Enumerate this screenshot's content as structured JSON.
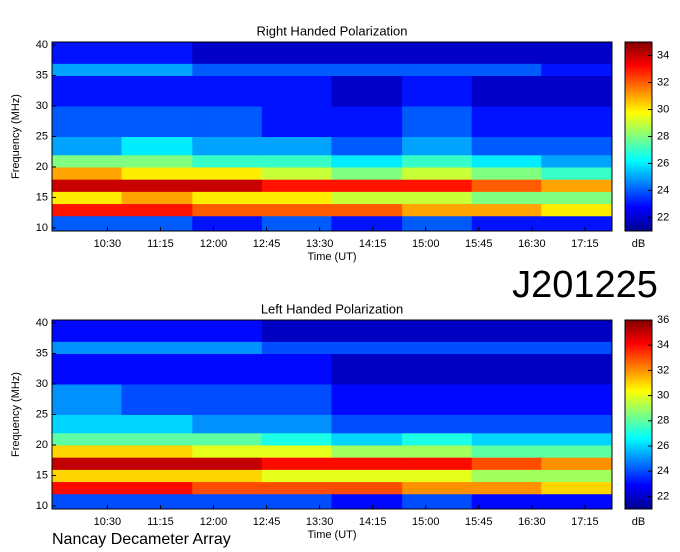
{
  "label": "J201225",
  "footer": "Nancay Decameter Array",
  "chart_data": [
    {
      "type": "heatmap",
      "title": "Right Handed Polarization",
      "x_label": "Time (UT)",
      "y_label": "Frequency (MHz)",
      "colorbar_label": "dB",
      "xlim": [
        583,
        1058
      ],
      "ylim": [
        9.5,
        40.5
      ],
      "zlim": [
        21,
        35
      ],
      "xticks": [
        {
          "value": 630,
          "label": "10:30"
        },
        {
          "value": 675,
          "label": "11:15"
        },
        {
          "value": 720,
          "label": "12:00"
        },
        {
          "value": 765,
          "label": "12:45"
        },
        {
          "value": 810,
          "label": "13:30"
        },
        {
          "value": 855,
          "label": "14:15"
        },
        {
          "value": 900,
          "label": "15:00"
        },
        {
          "value": 945,
          "label": "15:45"
        },
        {
          "value": 990,
          "label": "16:30"
        },
        {
          "value": 1035,
          "label": "17:15"
        }
      ],
      "yticks": [
        10,
        15,
        20,
        25,
        30,
        35,
        40
      ],
      "zticks": [
        22,
        24,
        26,
        28,
        30,
        32,
        34
      ],
      "xbins": [
        583,
        642,
        702,
        761,
        820,
        880,
        939,
        998,
        1058
      ],
      "ybins": [
        9.5,
        12,
        14,
        16,
        18,
        20,
        22,
        25,
        30,
        35,
        37,
        40.5
      ],
      "z": [
        [
          24,
          24,
          23,
          24,
          23,
          24,
          23,
          23
        ],
        [
          33,
          33,
          32,
          32,
          32,
          31,
          31,
          30
        ],
        [
          30,
          31,
          30,
          30,
          29,
          29,
          28,
          28
        ],
        [
          34,
          34,
          34,
          33,
          33,
          33,
          32,
          31
        ],
        [
          31,
          30,
          30,
          29,
          28,
          29,
          28,
          27
        ],
        [
          28,
          28,
          27,
          27,
          26,
          27,
          26,
          25
        ],
        [
          25,
          26,
          25,
          25,
          24,
          25,
          24,
          24
        ],
        [
          24,
          24,
          24,
          23,
          23,
          24,
          23,
          23
        ],
        [
          23,
          23,
          23,
          23,
          22,
          23,
          22,
          22
        ],
        [
          25,
          25,
          24,
          24,
          24,
          24,
          24,
          23
        ],
        [
          23,
          23,
          22,
          22,
          22,
          22,
          22,
          22
        ]
      ]
    },
    {
      "type": "heatmap",
      "title": "Left Handed Polarization",
      "x_label": "Time (UT)",
      "y_label": "Frequency (MHz)",
      "colorbar_label": "dB",
      "xlim": [
        583,
        1058
      ],
      "ylim": [
        9.5,
        40.5
      ],
      "zlim": [
        21,
        36
      ],
      "xticks": [
        {
          "value": 630,
          "label": "10:30"
        },
        {
          "value": 675,
          "label": "11:15"
        },
        {
          "value": 720,
          "label": "12:00"
        },
        {
          "value": 765,
          "label": "12:45"
        },
        {
          "value": 810,
          "label": "13:30"
        },
        {
          "value": 855,
          "label": "14:15"
        },
        {
          "value": 900,
          "label": "15:00"
        },
        {
          "value": 945,
          "label": "15:45"
        },
        {
          "value": 990,
          "label": "16:30"
        },
        {
          "value": 1035,
          "label": "17:15"
        }
      ],
      "yticks": [
        10,
        15,
        20,
        25,
        30,
        35,
        40
      ],
      "zticks": [
        22,
        24,
        26,
        28,
        30,
        32,
        34,
        36
      ],
      "xbins": [
        583,
        642,
        702,
        761,
        820,
        880,
        939,
        998,
        1058
      ],
      "ybins": [
        9.5,
        12,
        14,
        16,
        18,
        20,
        22,
        25,
        30,
        35,
        37,
        40.5
      ],
      "z": [
        [
          24,
          24,
          24,
          24,
          23,
          24,
          23,
          23
        ],
        [
          34,
          34,
          33,
          33,
          33,
          32,
          32,
          31
        ],
        [
          31,
          31,
          31,
          30,
          30,
          30,
          29,
          29
        ],
        [
          35,
          35,
          35,
          34,
          34,
          34,
          33,
          32
        ],
        [
          31,
          31,
          30,
          30,
          29,
          29,
          28,
          28
        ],
        [
          28,
          28,
          28,
          27,
          26,
          27,
          26,
          26
        ],
        [
          26,
          26,
          25,
          25,
          24,
          24,
          24,
          24
        ],
        [
          25,
          24,
          24,
          24,
          23,
          23,
          23,
          23
        ],
        [
          23,
          23,
          23,
          23,
          22,
          22,
          22,
          22
        ],
        [
          25,
          25,
          25,
          24,
          24,
          24,
          24,
          24
        ],
        [
          23,
          23,
          23,
          22,
          22,
          22,
          22,
          22
        ]
      ]
    }
  ]
}
